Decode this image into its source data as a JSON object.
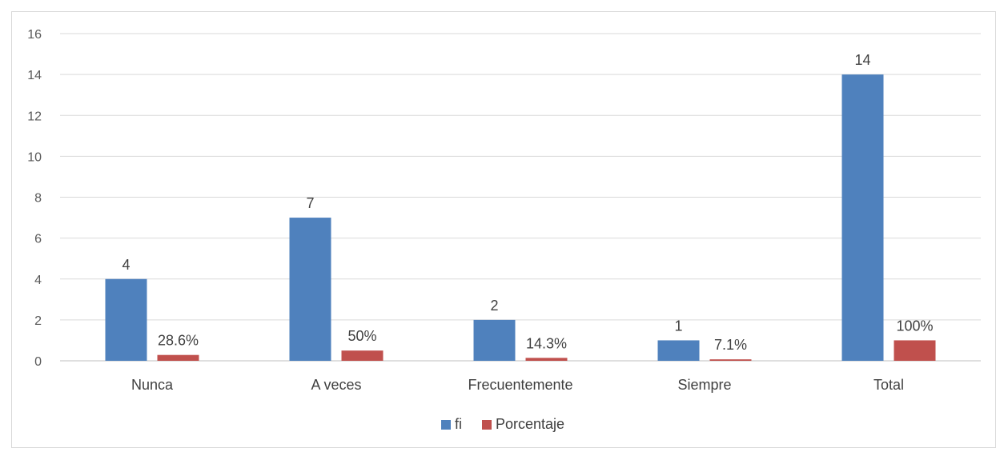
{
  "chart_data": {
    "type": "bar",
    "title": "",
    "xlabel": "",
    "ylabel": "",
    "categories": [
      "Nunca",
      "A veces",
      "Frecuentemente",
      "Siempre",
      "Total"
    ],
    "ylim": [
      0,
      16
    ],
    "yticks": [
      0,
      2,
      4,
      6,
      8,
      10,
      12,
      14,
      16
    ],
    "grid": true,
    "legend": "bottom",
    "series": [
      {
        "name": "fi",
        "color": "#4f81bd",
        "values": [
          4,
          7,
          2,
          1,
          14
        ],
        "labels": [
          "4",
          "7",
          "2",
          "1",
          "14"
        ]
      },
      {
        "name": "Porcentaje",
        "color": "#c0504d",
        "values": [
          0.286,
          0.5,
          0.143,
          0.071,
          1
        ],
        "labels": [
          "28.6%",
          "50%",
          "14.3%",
          "7.1%",
          "100%"
        ]
      }
    ]
  }
}
